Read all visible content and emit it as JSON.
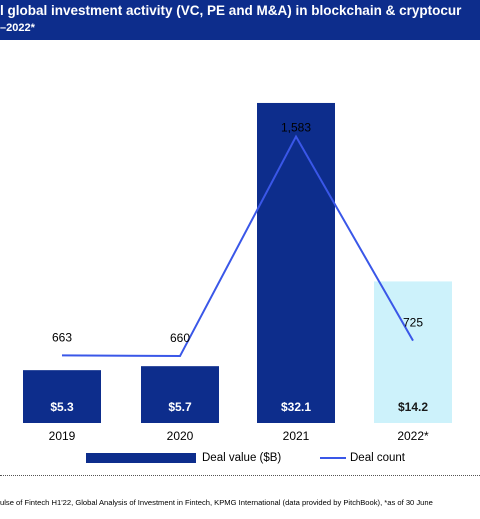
{
  "header": {
    "title": "l global investment activity (VC, PE and M&A) in blockchain & cryptocur",
    "subtitle": "–2022*"
  },
  "colors": {
    "header_bg": "#0d2d8c",
    "bar_dark": "#0d2d8c",
    "bar_light": "#cdf2fb",
    "line": "#3a57e8"
  },
  "chart_data": {
    "type": "bar",
    "categories": [
      "2019",
      "2020",
      "2021",
      "2022*"
    ],
    "series": [
      {
        "name": "Deal value ($B)",
        "kind": "bar",
        "values": [
          5.3,
          5.7,
          32.1,
          14.2
        ],
        "labels": [
          "$5.3",
          "$5.7",
          "$32.1",
          "$14.2"
        ]
      },
      {
        "name": "Deal count",
        "kind": "line",
        "values": [
          663,
          660,
          1583,
          725
        ],
        "labels": [
          "663",
          "660",
          "1,583",
          "725"
        ]
      }
    ],
    "grid": false,
    "legend_position": "bottom"
  },
  "footer": {
    "source": "ulse of Fintech H1'22, Global Analysis of Investment in Fintech, KPMG International (data provided by PitchBook), *as of 30 June"
  }
}
